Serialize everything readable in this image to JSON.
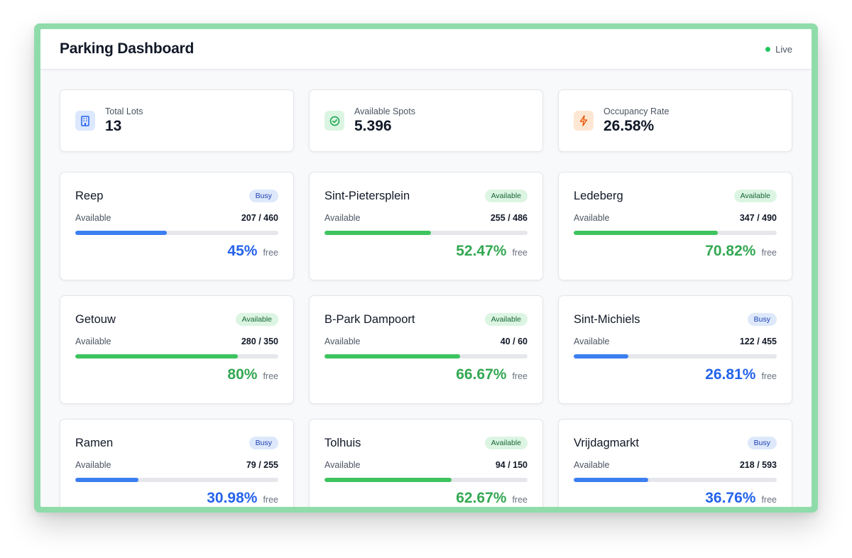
{
  "header": {
    "title": "Parking Dashboard",
    "status": "Live"
  },
  "colors": {
    "busy": "#3b7ef0",
    "available": "#3ec45e",
    "live": "#22c55e",
    "frame": "#8fdcaa"
  },
  "stats": [
    {
      "label": "Total Lots",
      "value": "13",
      "icon": "building-icon",
      "tone": "blue"
    },
    {
      "label": "Available Spots",
      "value": "5.396",
      "icon": "check-circle-icon",
      "tone": "green"
    },
    {
      "label": "Occupancy Rate",
      "value": "26.58%",
      "icon": "lightning-icon",
      "tone": "orange"
    }
  ],
  "lots": [
    {
      "name": "Reep",
      "badge": "Busy",
      "status": "busy",
      "available_label": "Available",
      "count": "207 / 460",
      "percent": "45%",
      "fill": 0.45,
      "free_label": "free"
    },
    {
      "name": "Sint-Pietersplein",
      "badge": "Available",
      "status": "available",
      "available_label": "Available",
      "count": "255 / 486",
      "percent": "52.47%",
      "fill": 0.5247,
      "free_label": "free"
    },
    {
      "name": "Ledeberg",
      "badge": "Available",
      "status": "available",
      "available_label": "Available",
      "count": "347 / 490",
      "percent": "70.82%",
      "fill": 0.7082,
      "free_label": "free"
    },
    {
      "name": "Getouw",
      "badge": "Available",
      "status": "available",
      "available_label": "Available",
      "count": "280 / 350",
      "percent": "80%",
      "fill": 0.8,
      "free_label": "free"
    },
    {
      "name": "B-Park Dampoort",
      "badge": "Available",
      "status": "available",
      "available_label": "Available",
      "count": "40 / 60",
      "percent": "66.67%",
      "fill": 0.6667,
      "free_label": "free"
    },
    {
      "name": "Sint-Michiels",
      "badge": "Busy",
      "status": "busy",
      "available_label": "Available",
      "count": "122 / 455",
      "percent": "26.81%",
      "fill": 0.2681,
      "free_label": "free"
    },
    {
      "name": "Ramen",
      "badge": "Busy",
      "status": "busy",
      "available_label": "Available",
      "count": "79 / 255",
      "percent": "30.98%",
      "fill": 0.3098,
      "free_label": "free"
    },
    {
      "name": "Tolhuis",
      "badge": "Available",
      "status": "available",
      "available_label": "Available",
      "count": "94 / 150",
      "percent": "62.67%",
      "fill": 0.6267,
      "free_label": "free"
    },
    {
      "name": "Vrijdagmarkt",
      "badge": "Busy",
      "status": "busy",
      "available_label": "Available",
      "count": "218 / 593",
      "percent": "36.76%",
      "fill": 0.3676,
      "free_label": "free"
    }
  ]
}
